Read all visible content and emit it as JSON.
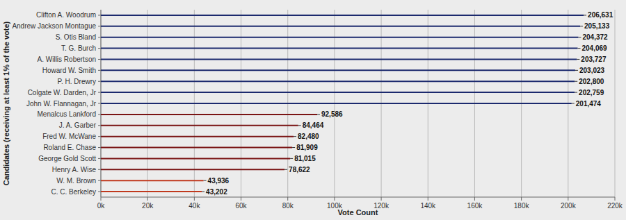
{
  "chart_data": {
    "type": "bar",
    "orientation": "horizontal",
    "x_label": "Vote Count",
    "y_label": "Candidates (receiving at least 1% of the vote)",
    "categories": [
      "Clifton A. Woodrum",
      "Andrew Jackson Montague",
      "S. Otis Bland",
      "T. G. Burch",
      "A. Willis Robertson",
      "Howard W. Smith",
      "P. H. Drewry",
      "Colgate W. Darden, Jr",
      "John W. Flannagan, Jr",
      "Menalcus Lankford",
      "J. A. Garber",
      "Fred W. McWane",
      "Roland E. Chase",
      "George Gold Scott",
      "Henry A. Wise",
      "W. M. Brown",
      "C. C. Berkeley"
    ],
    "values": [
      206631,
      205133,
      204372,
      204069,
      203727,
      203023,
      202800,
      202759,
      201474,
      92586,
      84464,
      82480,
      81909,
      81015,
      78622,
      43936,
      43202
    ],
    "value_labels": [
      "206,631",
      "205,133",
      "204,372",
      "204,069",
      "203,727",
      "203,023",
      "202,800",
      "202,759",
      "201,474",
      "92,586",
      "84,464",
      "82,480",
      "81,909",
      "81,015",
      "78,622",
      "43,936",
      "43,202"
    ],
    "colors": [
      "#1c2a6e",
      "#1c2a6e",
      "#1c2a6e",
      "#1c2a6e",
      "#1c2a6e",
      "#1c2a6e",
      "#1c2a6e",
      "#1c2a6e",
      "#1c2a6e",
      "#7a1414",
      "#7a1414",
      "#7a1414",
      "#7a1414",
      "#7a1414",
      "#7a1414",
      "#c0391e",
      "#c0391e"
    ],
    "xlim": [
      0,
      220000
    ],
    "xticks": [
      {
        "value": 0,
        "label": "0k"
      },
      {
        "value": 20000,
        "label": "20k"
      },
      {
        "value": 40000,
        "label": "40k"
      },
      {
        "value": 60000,
        "label": "60k"
      },
      {
        "value": 80000,
        "label": "80k"
      },
      {
        "value": 100000,
        "label": "100k"
      },
      {
        "value": 120000,
        "label": "120k"
      },
      {
        "value": 140000,
        "label": "140k"
      },
      {
        "value": 160000,
        "label": "160k"
      },
      {
        "value": 180000,
        "label": "180k"
      },
      {
        "value": 200000,
        "label": "200k"
      },
      {
        "value": 220000,
        "label": "220k"
      }
    ],
    "grid": true,
    "data_labels": true
  }
}
